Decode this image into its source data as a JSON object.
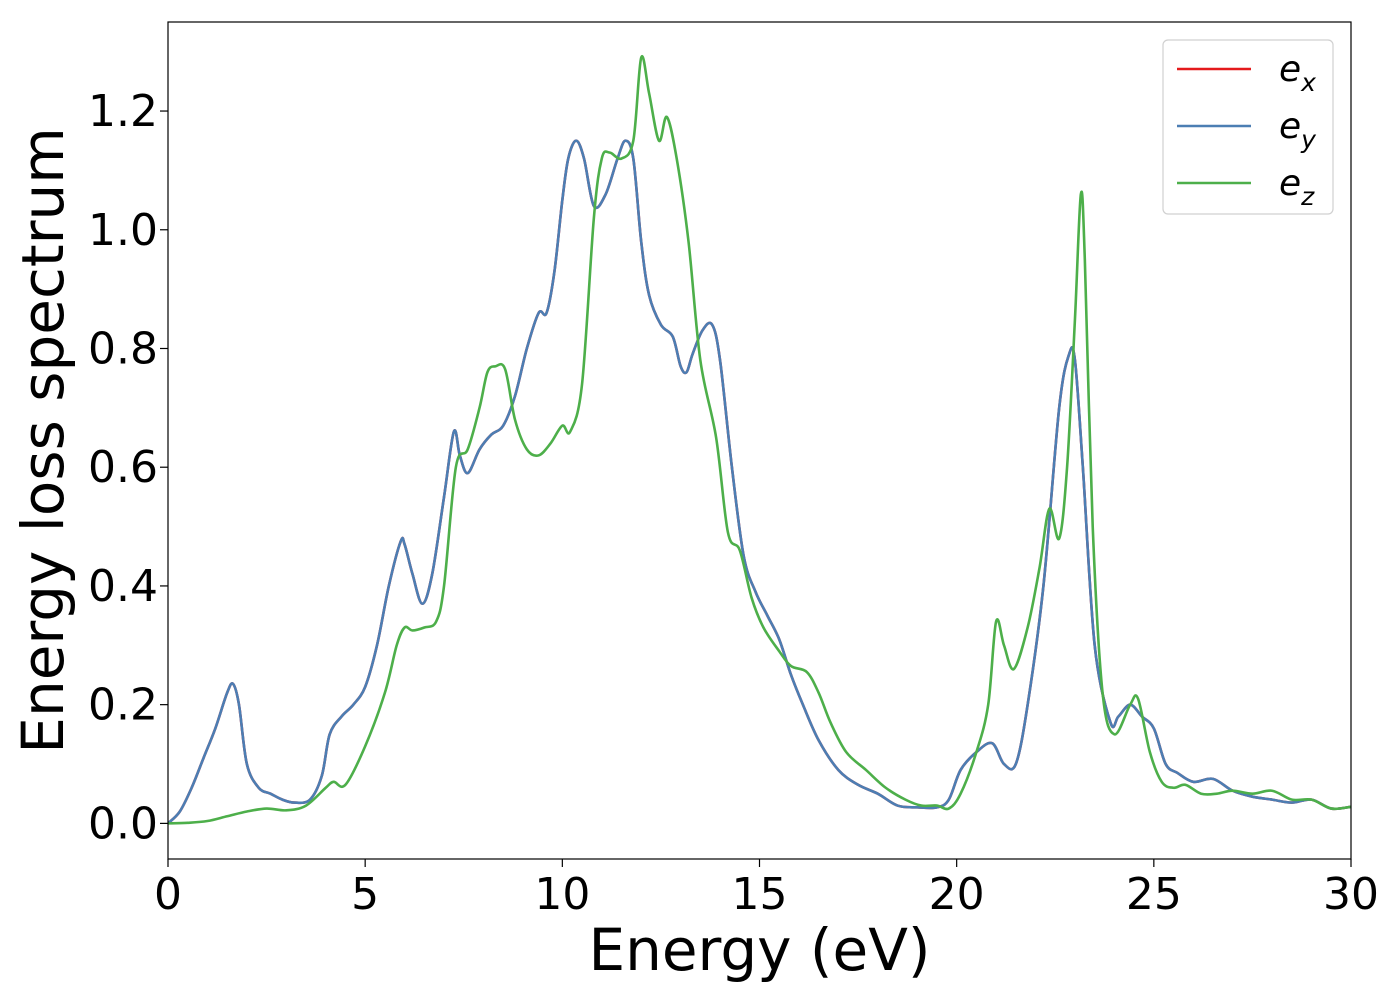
{
  "chart_data": {
    "type": "line",
    "xlabel": "Energy (eV)",
    "ylabel": "Energy loss spectrum",
    "xlim": [
      0,
      30
    ],
    "ylim": [
      -0.06,
      1.35
    ],
    "xticks": [
      0,
      5,
      10,
      15,
      20,
      25,
      30
    ],
    "xtick_labels": [
      "0",
      "5",
      "10",
      "15",
      "20",
      "25",
      "30"
    ],
    "yticks": [
      0.0,
      0.2,
      0.4,
      0.6,
      0.8,
      1.0,
      1.2
    ],
    "ytick_labels": [
      "0.0",
      "0.2",
      "0.4",
      "0.6",
      "0.8",
      "1.0",
      "1.2"
    ],
    "grid": false,
    "legend_position": "top-right",
    "series": [
      {
        "name": "e",
        "subscript": "x",
        "color": "#e41a1c",
        "x": [
          0,
          0.3,
          0.6,
          0.9,
          1.2,
          1.5,
          1.65,
          1.8,
          2.0,
          2.3,
          2.6,
          2.9,
          3.2,
          3.6,
          3.9,
          4.1,
          4.4,
          4.7,
          5.0,
          5.3,
          5.6,
          5.9,
          6.0,
          6.2,
          6.45,
          6.7,
          7.0,
          7.25,
          7.4,
          7.6,
          7.9,
          8.2,
          8.5,
          8.8,
          9.1,
          9.4,
          9.6,
          9.8,
          10.0,
          10.15,
          10.35,
          10.55,
          10.8,
          11.1,
          11.4,
          11.6,
          11.8,
          12.0,
          12.2,
          12.5,
          12.8,
          13.0,
          13.15,
          13.3,
          13.55,
          13.8,
          14.0,
          14.3,
          14.6,
          14.9,
          15.2,
          15.5,
          15.8,
          16.1,
          16.5,
          17.0,
          17.5,
          18.0,
          18.5,
          19.0,
          19.5,
          19.8,
          20.1,
          20.5,
          20.9,
          21.2,
          21.5,
          21.8,
          22.2,
          22.6,
          22.85,
          23.0,
          23.2,
          23.5,
          23.9,
          24.1,
          24.4,
          24.7,
          25.0,
          25.3,
          25.6,
          26.0,
          26.5,
          27.0,
          27.5,
          28.0,
          28.5,
          29.0,
          29.5,
          30.0
        ],
        "y": [
          0.0,
          0.02,
          0.06,
          0.11,
          0.16,
          0.22,
          0.235,
          0.2,
          0.1,
          0.06,
          0.05,
          0.04,
          0.035,
          0.04,
          0.08,
          0.15,
          0.18,
          0.2,
          0.23,
          0.3,
          0.4,
          0.475,
          0.47,
          0.42,
          0.37,
          0.42,
          0.55,
          0.66,
          0.62,
          0.59,
          0.63,
          0.655,
          0.67,
          0.72,
          0.8,
          0.86,
          0.86,
          0.93,
          1.05,
          1.12,
          1.15,
          1.12,
          1.04,
          1.06,
          1.12,
          1.15,
          1.12,
          0.98,
          0.89,
          0.84,
          0.82,
          0.77,
          0.76,
          0.79,
          0.83,
          0.84,
          0.78,
          0.6,
          0.45,
          0.39,
          0.35,
          0.31,
          0.25,
          0.2,
          0.14,
          0.09,
          0.065,
          0.05,
          0.03,
          0.027,
          0.027,
          0.04,
          0.09,
          0.12,
          0.135,
          0.1,
          0.1,
          0.2,
          0.4,
          0.7,
          0.79,
          0.78,
          0.6,
          0.3,
          0.17,
          0.18,
          0.2,
          0.18,
          0.16,
          0.1,
          0.085,
          0.07,
          0.075,
          0.055,
          0.045,
          0.04,
          0.035,
          0.04,
          0.025,
          0.028
        ]
      },
      {
        "name": "e",
        "subscript": "y",
        "color": "#4c7eb3",
        "x": [
          0,
          0.3,
          0.6,
          0.9,
          1.2,
          1.5,
          1.65,
          1.8,
          2.0,
          2.3,
          2.6,
          2.9,
          3.2,
          3.6,
          3.9,
          4.1,
          4.4,
          4.7,
          5.0,
          5.3,
          5.6,
          5.9,
          6.0,
          6.2,
          6.45,
          6.7,
          7.0,
          7.25,
          7.4,
          7.6,
          7.9,
          8.2,
          8.5,
          8.8,
          9.1,
          9.4,
          9.6,
          9.8,
          10.0,
          10.15,
          10.35,
          10.55,
          10.8,
          11.1,
          11.4,
          11.6,
          11.8,
          12.0,
          12.2,
          12.5,
          12.8,
          13.0,
          13.15,
          13.3,
          13.55,
          13.8,
          14.0,
          14.3,
          14.6,
          14.9,
          15.2,
          15.5,
          15.8,
          16.1,
          16.5,
          17.0,
          17.5,
          18.0,
          18.5,
          19.0,
          19.5,
          19.8,
          20.1,
          20.5,
          20.9,
          21.2,
          21.5,
          21.8,
          22.2,
          22.6,
          22.85,
          23.0,
          23.2,
          23.5,
          23.9,
          24.1,
          24.4,
          24.7,
          25.0,
          25.3,
          25.6,
          26.0,
          26.5,
          27.0,
          27.5,
          28.0,
          28.5,
          29.0,
          29.5,
          30.0
        ],
        "y": [
          0.0,
          0.02,
          0.06,
          0.11,
          0.16,
          0.22,
          0.235,
          0.2,
          0.1,
          0.06,
          0.05,
          0.04,
          0.035,
          0.04,
          0.08,
          0.15,
          0.18,
          0.2,
          0.23,
          0.3,
          0.4,
          0.475,
          0.47,
          0.42,
          0.37,
          0.42,
          0.55,
          0.66,
          0.62,
          0.59,
          0.63,
          0.655,
          0.67,
          0.72,
          0.8,
          0.86,
          0.86,
          0.93,
          1.05,
          1.12,
          1.15,
          1.12,
          1.04,
          1.06,
          1.12,
          1.15,
          1.12,
          0.98,
          0.89,
          0.84,
          0.82,
          0.77,
          0.76,
          0.79,
          0.83,
          0.84,
          0.78,
          0.6,
          0.45,
          0.39,
          0.35,
          0.31,
          0.25,
          0.2,
          0.14,
          0.09,
          0.065,
          0.05,
          0.03,
          0.027,
          0.027,
          0.04,
          0.09,
          0.12,
          0.135,
          0.1,
          0.1,
          0.2,
          0.4,
          0.7,
          0.79,
          0.78,
          0.6,
          0.3,
          0.17,
          0.18,
          0.2,
          0.18,
          0.16,
          0.1,
          0.085,
          0.07,
          0.075,
          0.055,
          0.045,
          0.04,
          0.035,
          0.04,
          0.025,
          0.028
        ]
      },
      {
        "name": "e",
        "subscript": "z",
        "color": "#4daf4a",
        "x": [
          0,
          0.5,
          1.0,
          1.5,
          2.0,
          2.5,
          3.0,
          3.5,
          4.0,
          4.2,
          4.5,
          5.0,
          5.5,
          5.8,
          6.0,
          6.2,
          6.5,
          6.8,
          7.0,
          7.3,
          7.6,
          7.9,
          8.1,
          8.3,
          8.55,
          8.8,
          9.1,
          9.4,
          9.7,
          10.0,
          10.2,
          10.5,
          10.8,
          11.0,
          11.2,
          11.5,
          11.8,
          12.0,
          12.2,
          12.45,
          12.65,
          12.9,
          13.2,
          13.5,
          13.9,
          14.2,
          14.5,
          14.8,
          15.1,
          15.5,
          15.8,
          16.2,
          16.5,
          16.8,
          17.2,
          17.7,
          18.2,
          18.7,
          19.1,
          19.5,
          19.8,
          20.1,
          20.5,
          20.8,
          21.0,
          21.2,
          21.45,
          21.8,
          22.1,
          22.35,
          22.6,
          22.8,
          23.0,
          23.15,
          23.25,
          23.45,
          23.7,
          24.0,
          24.4,
          24.6,
          24.9,
          25.2,
          25.5,
          25.8,
          26.2,
          26.6,
          27.0,
          27.5,
          28.0,
          28.5,
          29.0,
          29.5,
          30.0
        ],
        "y": [
          0.0,
          0.001,
          0.004,
          0.012,
          0.02,
          0.025,
          0.022,
          0.03,
          0.06,
          0.07,
          0.065,
          0.13,
          0.22,
          0.3,
          0.33,
          0.325,
          0.33,
          0.34,
          0.4,
          0.6,
          0.63,
          0.7,
          0.76,
          0.77,
          0.765,
          0.68,
          0.63,
          0.62,
          0.64,
          0.67,
          0.66,
          0.74,
          1.02,
          1.12,
          1.13,
          1.12,
          1.15,
          1.29,
          1.23,
          1.15,
          1.19,
          1.12,
          0.98,
          0.78,
          0.65,
          0.49,
          0.46,
          0.38,
          0.33,
          0.29,
          0.265,
          0.255,
          0.22,
          0.17,
          0.12,
          0.09,
          0.06,
          0.04,
          0.03,
          0.03,
          0.025,
          0.05,
          0.12,
          0.2,
          0.34,
          0.3,
          0.26,
          0.33,
          0.43,
          0.53,
          0.48,
          0.6,
          0.85,
          1.06,
          0.95,
          0.5,
          0.22,
          0.15,
          0.2,
          0.21,
          0.12,
          0.07,
          0.06,
          0.065,
          0.05,
          0.05,
          0.055,
          0.05,
          0.055,
          0.04,
          0.04,
          0.025,
          0.028
        ]
      }
    ]
  }
}
